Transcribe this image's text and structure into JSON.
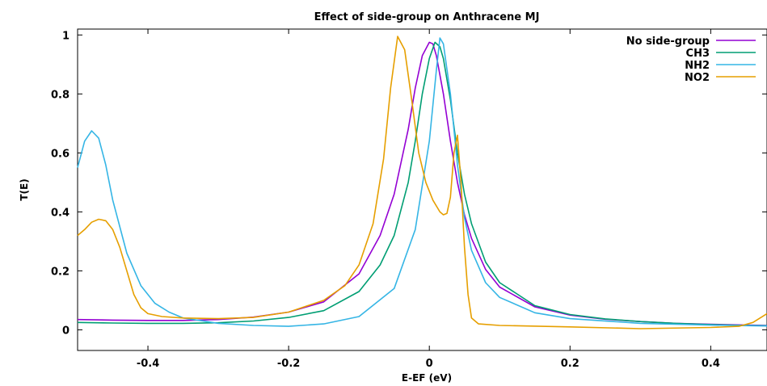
{
  "chart_data": {
    "type": "line",
    "title": "Effect of side-group on Anthracene MJ",
    "xlabel": "E-EF (eV)",
    "ylabel": "T(E)",
    "xlim": [
      -0.5,
      0.48
    ],
    "ylim": [
      -0.07,
      1.02
    ],
    "xticks": [
      {
        "value": -0.4,
        "label": "-0.4"
      },
      {
        "value": -0.2,
        "label": "-0.2"
      },
      {
        "value": 0,
        "label": "0"
      },
      {
        "value": 0.2,
        "label": "0.2"
      },
      {
        "value": 0.4,
        "label": "0.4"
      }
    ],
    "yticks": [
      {
        "value": 0,
        "label": "0"
      },
      {
        "value": 0.2,
        "label": "0.2"
      },
      {
        "value": 0.4,
        "label": "0.4"
      },
      {
        "value": 0.6,
        "label": "0.6"
      },
      {
        "value": 0.8,
        "label": "0.8"
      },
      {
        "value": 1,
        "label": "1"
      }
    ],
    "grid": false,
    "legend_position": "top-right",
    "series": [
      {
        "name": "No side-group",
        "color": "#9400d3",
        "x": [
          -0.5,
          -0.45,
          -0.4,
          -0.35,
          -0.3,
          -0.25,
          -0.2,
          -0.15,
          -0.1,
          -0.07,
          -0.05,
          -0.03,
          -0.02,
          -0.01,
          0,
          0.005,
          0.01,
          0.02,
          0.03,
          0.04,
          0.05,
          0.06,
          0.08,
          0.1,
          0.15,
          0.2,
          0.25,
          0.3,
          0.35,
          0.4,
          0.45,
          0.48
        ],
        "y": [
          0.035,
          0.033,
          0.032,
          0.032,
          0.035,
          0.043,
          0.06,
          0.095,
          0.19,
          0.32,
          0.46,
          0.68,
          0.82,
          0.93,
          0.975,
          0.97,
          0.93,
          0.8,
          0.64,
          0.5,
          0.39,
          0.31,
          0.205,
          0.145,
          0.078,
          0.05,
          0.036,
          0.028,
          0.022,
          0.019,
          0.016,
          0.015
        ]
      },
      {
        "name": "CH3",
        "color": "#009e73",
        "x": [
          -0.5,
          -0.45,
          -0.4,
          -0.35,
          -0.3,
          -0.25,
          -0.2,
          -0.15,
          -0.1,
          -0.07,
          -0.05,
          -0.03,
          -0.02,
          -0.01,
          0,
          0.008,
          0.015,
          0.02,
          0.03,
          0.04,
          0.05,
          0.06,
          0.08,
          0.1,
          0.15,
          0.2,
          0.25,
          0.3,
          0.35,
          0.4,
          0.45,
          0.48
        ],
        "y": [
          0.025,
          0.023,
          0.022,
          0.022,
          0.024,
          0.03,
          0.042,
          0.065,
          0.13,
          0.22,
          0.32,
          0.5,
          0.64,
          0.8,
          0.92,
          0.975,
          0.96,
          0.92,
          0.78,
          0.6,
          0.46,
          0.36,
          0.23,
          0.16,
          0.082,
          0.052,
          0.037,
          0.028,
          0.022,
          0.018,
          0.015,
          0.014
        ]
      },
      {
        "name": "NH2",
        "color": "#35b5e5",
        "x": [
          -0.5,
          -0.49,
          -0.48,
          -0.47,
          -0.46,
          -0.45,
          -0.43,
          -0.41,
          -0.39,
          -0.37,
          -0.35,
          -0.3,
          -0.25,
          -0.2,
          -0.15,
          -0.1,
          -0.05,
          -0.02,
          0,
          0.01,
          0.015,
          0.02,
          0.03,
          0.04,
          0.05,
          0.06,
          0.08,
          0.1,
          0.15,
          0.2,
          0.3,
          0.4,
          0.48
        ],
        "y": [
          0.55,
          0.64,
          0.675,
          0.65,
          0.56,
          0.44,
          0.26,
          0.15,
          0.09,
          0.06,
          0.04,
          0.022,
          0.015,
          0.012,
          0.02,
          0.045,
          0.14,
          0.34,
          0.64,
          0.88,
          0.99,
          0.97,
          0.8,
          0.56,
          0.38,
          0.27,
          0.16,
          0.11,
          0.058,
          0.038,
          0.022,
          0.016,
          0.013
        ]
      },
      {
        "name": "NO2",
        "color": "#e69f00",
        "x": [
          -0.5,
          -0.49,
          -0.48,
          -0.47,
          -0.46,
          -0.45,
          -0.44,
          -0.43,
          -0.42,
          -0.41,
          -0.4,
          -0.38,
          -0.35,
          -0.3,
          -0.25,
          -0.2,
          -0.15,
          -0.12,
          -0.1,
          -0.08,
          -0.065,
          -0.055,
          -0.045,
          -0.035,
          -0.025,
          -0.015,
          -0.005,
          0.005,
          0.015,
          0.02,
          0.025,
          0.03,
          0.035,
          0.04,
          0.045,
          0.05,
          0.055,
          0.06,
          0.07,
          0.1,
          0.2,
          0.3,
          0.4,
          0.44,
          0.46,
          0.48
        ],
        "y": [
          0.32,
          0.34,
          0.365,
          0.375,
          0.37,
          0.34,
          0.28,
          0.2,
          0.12,
          0.075,
          0.055,
          0.045,
          0.04,
          0.038,
          0.042,
          0.06,
          0.1,
          0.15,
          0.22,
          0.36,
          0.58,
          0.82,
          0.995,
          0.95,
          0.78,
          0.6,
          0.5,
          0.44,
          0.4,
          0.39,
          0.395,
          0.45,
          0.6,
          0.66,
          0.5,
          0.28,
          0.12,
          0.04,
          0.02,
          0.015,
          0.01,
          0.004,
          0.008,
          0.012,
          0.025,
          0.055
        ]
      }
    ]
  }
}
